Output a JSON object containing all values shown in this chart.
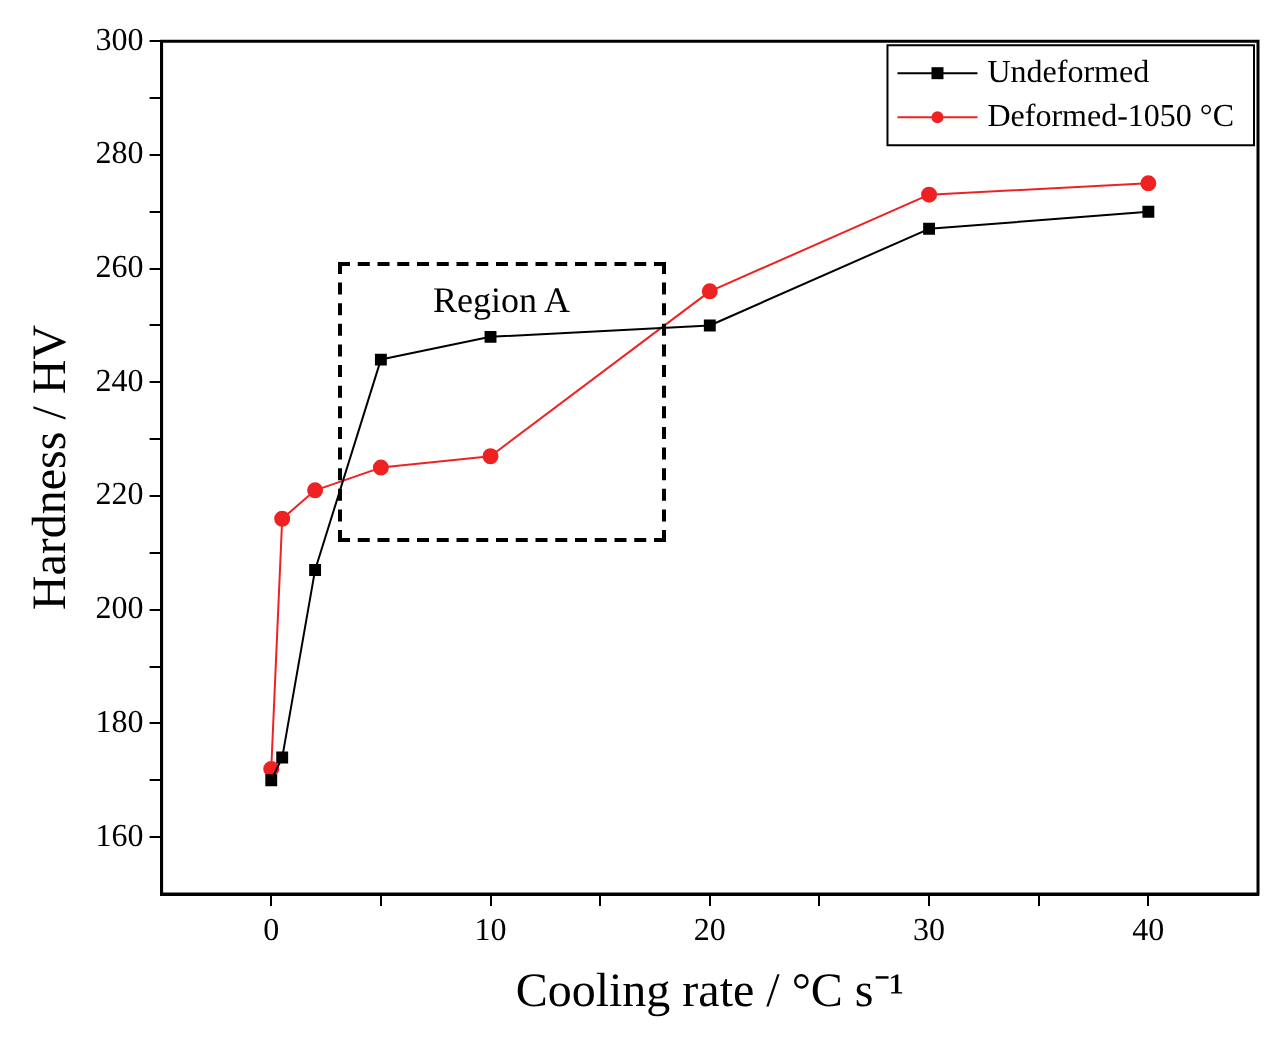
{
  "chart_data": {
    "type": "line",
    "xlabel": "Cooling rate / °C s⁻¹",
    "ylabel": "Hardness / HV",
    "xlim": [
      -5,
      45
    ],
    "xticks": [
      0,
      {
        "value": 5,
        "label": null
      },
      10,
      {
        "value": 15,
        "label": null
      },
      20,
      {
        "value": 25,
        "label": null
      },
      30,
      {
        "value": 35,
        "label": null
      },
      40
    ],
    "ylim": [
      150,
      300
    ],
    "yticks": [
      160,
      {
        "value": 170,
        "label": null
      },
      180,
      {
        "value": 190,
        "label": null
      },
      200,
      {
        "value": 210,
        "label": null
      },
      220,
      {
        "value": 230,
        "label": null
      },
      240,
      {
        "value": 250,
        "label": null
      },
      260,
      {
        "value": 270,
        "label": null
      },
      280,
      {
        "value": 290,
        "label": null
      },
      300
    ],
    "grid": false,
    "legend": "top right",
    "line_style": "solid",
    "annotations": [
      "Region A"
    ],
    "series": [
      {
        "name": "Undeformed",
        "color": "#000000",
        "marker": "square",
        "x": [
          0,
          0.5,
          2,
          5,
          10,
          20,
          30,
          40
        ],
        "values": [
          170,
          174,
          207,
          244,
          248,
          250,
          267,
          270
        ]
      },
      {
        "name": "Deformed-1050 °C",
        "color": "#ee2222",
        "marker": "circle",
        "x": [
          0,
          0.5,
          2,
          5,
          10,
          20,
          30,
          40
        ],
        "values": [
          172,
          216,
          221,
          225,
          227,
          256,
          273,
          275
        ]
      }
    ]
  }
}
